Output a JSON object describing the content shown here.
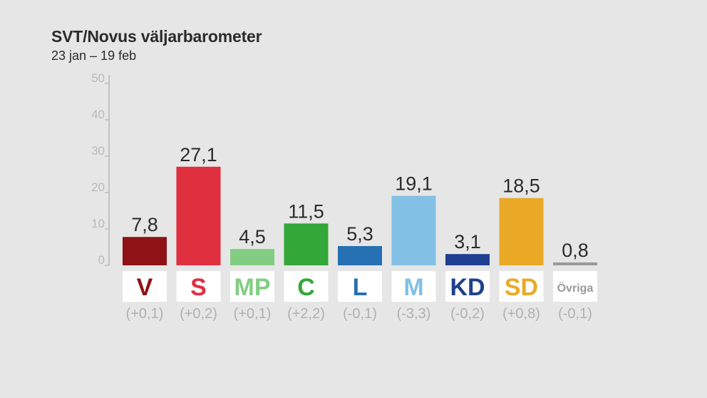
{
  "chart_data": {
    "type": "bar",
    "title": "SVT/Novus väljarbarometer",
    "subtitle": "23 jan – 19 feb",
    "ylim": [
      0,
      50
    ],
    "yticks": [
      "0",
      "10",
      "20",
      "30",
      "40",
      "50"
    ],
    "grid": false,
    "categories": [
      "V",
      "S",
      "MP",
      "C",
      "L",
      "M",
      "KD",
      "SD",
      "Övriga"
    ],
    "values": [
      7.8,
      27.1,
      4.5,
      11.5,
      5.3,
      19.1,
      3.1,
      18.5,
      0.8
    ],
    "value_labels": [
      "7,8",
      "27,1",
      "4,5",
      "11,5",
      "5,3",
      "19,1",
      "3,1",
      "18,5",
      "0,8"
    ],
    "changes": [
      "(+0,1)",
      "(+0,2)",
      "(+0,1)",
      "(+2,2)",
      "(-0,1)",
      "(-3,3)",
      "(-0,2)",
      "(+0,8)",
      "(-0,1)"
    ],
    "colors": [
      "#8e1216",
      "#e02f3f",
      "#83cd83",
      "#33a737",
      "#2670b4",
      "#83c0e6",
      "#1f3f8f",
      "#eaaa27",
      "#9a9a9a"
    ]
  }
}
